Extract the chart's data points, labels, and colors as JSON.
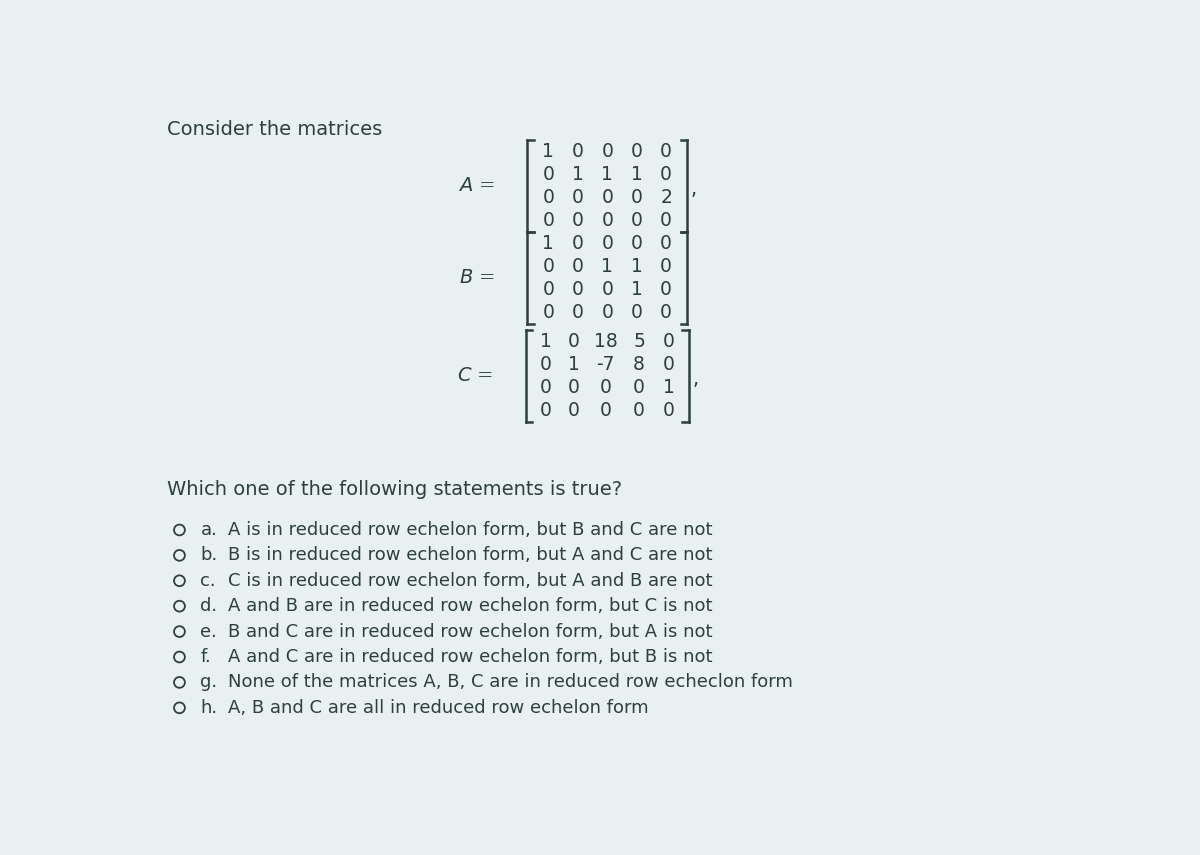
{
  "background_color": "#e8f0f0",
  "title_text": "Consider the matrices",
  "text_color": "#2d3f3f",
  "matrix_A": [
    [
      "1",
      "0",
      "0",
      "0",
      "0"
    ],
    [
      "0",
      "1",
      "1",
      "1",
      "0"
    ],
    [
      "0",
      "0",
      "0",
      "0",
      "2"
    ],
    [
      "0",
      "0",
      "0",
      "0",
      "0"
    ]
  ],
  "matrix_B": [
    [
      "1",
      "0",
      "0",
      "0",
      "0"
    ],
    [
      "0",
      "0",
      "1",
      "1",
      "0"
    ],
    [
      "0",
      "0",
      "0",
      "1",
      "0"
    ],
    [
      "0",
      "0",
      "0",
      "0",
      "0"
    ]
  ],
  "matrix_C": [
    [
      "1",
      "0",
      "18",
      "5",
      "0"
    ],
    [
      "0",
      "1",
      "-7",
      "8",
      "0"
    ],
    [
      "0",
      "0",
      "0",
      "0",
      "1"
    ],
    [
      "0",
      "0",
      "0",
      "0",
      "0"
    ]
  ],
  "question_text": "Which one of the following statements is true?",
  "options": [
    [
      "a.",
      "A is in reduced row echelon form, but B and C are not"
    ],
    [
      "b.",
      "B is in reduced row echelon form, but A and C are not"
    ],
    [
      "c.",
      "C is in reduced row echelon form, but A and B are not"
    ],
    [
      "d.",
      "A and B are in reduced row echelon form, but C is not"
    ],
    [
      "e.",
      "B and C are in reduced row echelon form, but A is not"
    ],
    [
      "f.",
      "A and C are in reduced row echelon form, but B is not"
    ],
    [
      "g.",
      "None of the matrices A, B, C are in reduced row echeclon form"
    ],
    [
      "h.",
      "A, B and C are all in reduced row echelon form"
    ]
  ]
}
